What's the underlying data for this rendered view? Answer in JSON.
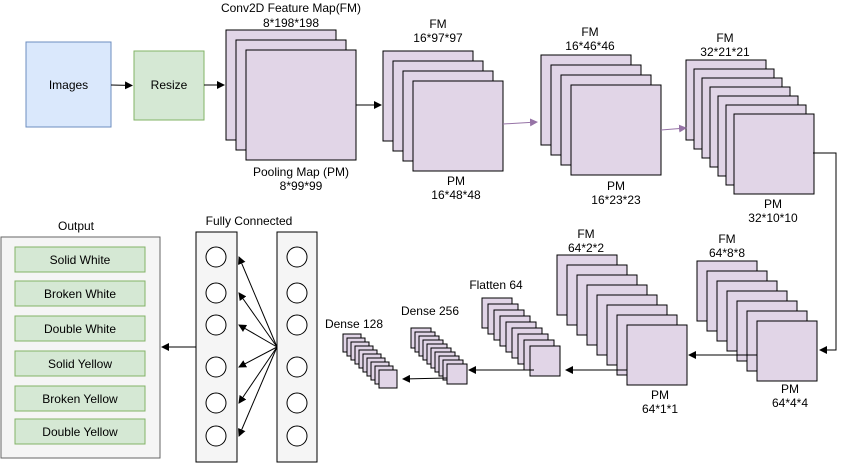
{
  "colors": {
    "images_fill": "#dae8fc",
    "images_stroke": "#6c8ebf",
    "resize_fill": "#d5e8d4",
    "resize_stroke": "#82b366",
    "layer_fill": "#e1d5e7",
    "layer_stroke": "#000000",
    "output_fill": "#f5f5f5",
    "output_stroke": "#666666",
    "class_fill": "#d5e8d4",
    "class_stroke": "#82b366",
    "arrow": "#000000",
    "arrow_purple": "#9673a6"
  },
  "input": {
    "images_label": "Images",
    "resize_label": "Resize"
  },
  "conv1": {
    "title": "Conv2D Feature Map(FM)",
    "fm_size": "8*198*198",
    "pm_title": "Pooling Map (PM)",
    "pm_size": "8*99*99"
  },
  "conv2": {
    "fm_title": "FM",
    "fm_size": "16*97*97",
    "pm_title": "PM",
    "pm_size": "16*48*48"
  },
  "conv3": {
    "fm_title": "FM",
    "fm_size": "16*46*46",
    "pm_title": "PM",
    "pm_size": "16*23*23"
  },
  "conv4": {
    "fm_title": "FM",
    "fm_size": "32*21*21",
    "pm_title": "PM",
    "pm_size": "32*10*10"
  },
  "conv5": {
    "fm_title": "FM",
    "fm_size": "64*8*8",
    "pm_title": "PM",
    "pm_size": "64*4*4"
  },
  "conv6": {
    "fm_title": "FM",
    "fm_size": "64*2*2",
    "pm_title": "PM",
    "pm_size": "64*1*1"
  },
  "flatten": {
    "label": "Flatten 64"
  },
  "dense256": {
    "label": "Dense 256"
  },
  "dense128": {
    "label": "Dense 128"
  },
  "fully_connected": {
    "label": "Fully Connected"
  },
  "output": {
    "title": "Output",
    "classes": [
      "Solid White",
      "Broken White",
      "Double White",
      "Solid Yellow",
      "Broken Yellow",
      "Double Yellow"
    ]
  }
}
